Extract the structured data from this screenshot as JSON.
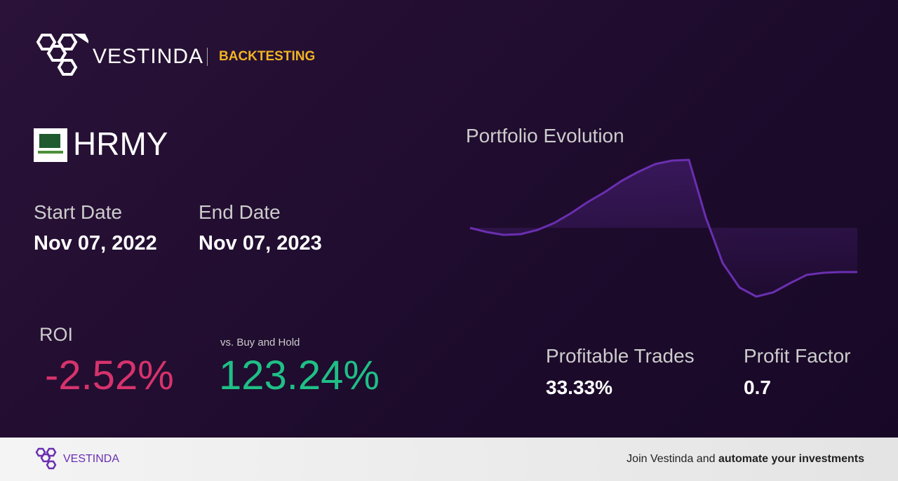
{
  "header": {
    "brand": "VESTINDA",
    "section": "BACKTESTING"
  },
  "ticker": "HRMY",
  "dates": {
    "start_label": "Start Date",
    "start": "Nov 07, 2022",
    "end_label": "End Date",
    "end": "Nov 07, 2023"
  },
  "roi": {
    "label": "ROI",
    "value": "-2.52%",
    "benchmark_label": "vs. Buy and Hold",
    "benchmark": "123.24%"
  },
  "stats": {
    "trades_label": "Profitable Trades",
    "trades": "33.33%",
    "factor_label": "Profit Factor",
    "factor": "0.7"
  },
  "chart_data": {
    "type": "line",
    "title": "Portfolio Evolution",
    "color": "#6a2fb0",
    "values": [
      0,
      -0.24,
      -0.4,
      -0.36,
      -0.12,
      0.28,
      0.84,
      1.48,
      2.04,
      2.68,
      3.2,
      3.64,
      3.84,
      3.88,
      0.6,
      -2.0,
      -3.4,
      -3.92,
      -3.68,
      -3.16,
      -2.68,
      -2.56,
      -2.52,
      -2.52
    ]
  },
  "footer": {
    "brand": "VESTINDA",
    "cta_plain": "Join Vestinda and ",
    "cta_bold": "automate your investments"
  }
}
